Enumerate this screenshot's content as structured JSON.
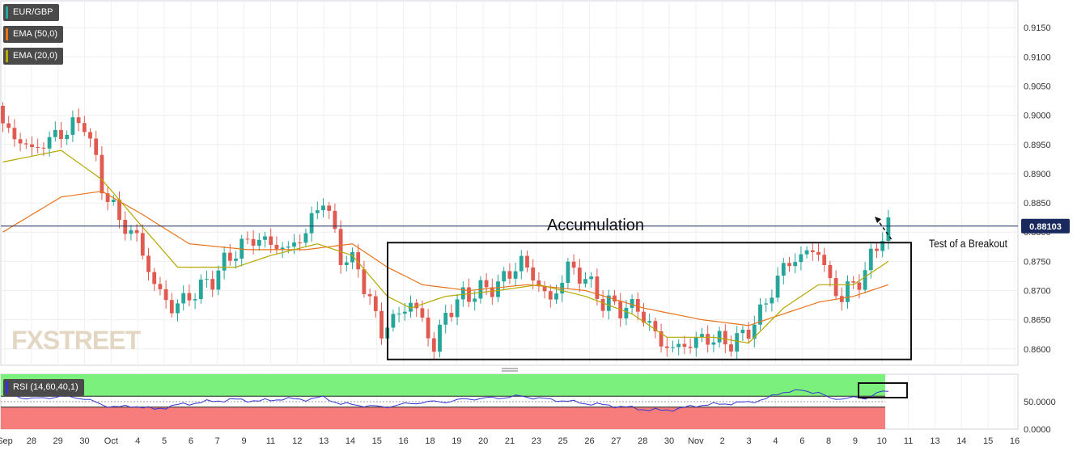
{
  "legend": [
    {
      "label": "EUR/GBP",
      "color": "#26a69a"
    },
    {
      "label": "EMA (50,0)",
      "color": "#e8731a"
    },
    {
      "label": "EMA (20,0)",
      "color": "#b5a800"
    }
  ],
  "rsi_label": "RSI (14,60,40,1)",
  "watermark": "FXSTREET",
  "current_price_label": "0.88103",
  "annotations": {
    "accumulation": "Accumulation",
    "test_breakout": "Test of a Breakout"
  },
  "colors": {
    "up_candle": "#26a69a",
    "down_candle": "#e05a4f",
    "ema50": "#e8731a",
    "ema20": "#b5a800",
    "rsi_line": "#3535d0",
    "rsi_overbought": "#7cf07c",
    "rsi_oversold": "#f77d7d",
    "price_line": "#1a2a5e"
  },
  "chart_data": {
    "type": "candlestick",
    "symbol": "EUR/GBP",
    "x_labels": [
      "Sep",
      "28",
      "29",
      "30",
      "Oct",
      "4",
      "5",
      "6",
      "7",
      "9",
      "11",
      "12",
      "13",
      "14",
      "15",
      "16",
      "18",
      "19",
      "20",
      "21",
      "23",
      "25",
      "26",
      "27",
      "28",
      "30",
      "Nov",
      "2",
      "3",
      "4",
      "6",
      "8",
      "9",
      "10",
      "11",
      "13",
      "14",
      "15",
      "16"
    ],
    "y_ticks": [
      0.86,
      0.865,
      0.87,
      0.875,
      0.88,
      0.885,
      0.89,
      0.895,
      0.9,
      0.905,
      0.91,
      0.915
    ],
    "y_tick_labels": [
      "0.8600",
      "0.8650",
      "0.8700",
      "0.8750",
      "0.8800",
      "0.8850",
      "0.8900",
      "0.8950",
      "0.9000",
      "0.9050",
      "0.9100",
      "0.9150"
    ],
    "ylim": [
      0.8572,
      0.9196
    ],
    "current_price": 0.88103,
    "price_anchors": [
      [
        0,
        0.898
      ],
      [
        5,
        0.894
      ],
      [
        10,
        0.897
      ],
      [
        14,
        0.899
      ],
      [
        17,
        0.888
      ],
      [
        20,
        0.882
      ],
      [
        23,
        0.879
      ],
      [
        26,
        0.871
      ],
      [
        29,
        0.867
      ],
      [
        32,
        0.869
      ],
      [
        36,
        0.872
      ],
      [
        39,
        0.876
      ],
      [
        43,
        0.879
      ],
      [
        46,
        0.878
      ],
      [
        49,
        0.877
      ],
      [
        52,
        0.88
      ],
      [
        55,
        0.886
      ],
      [
        58,
        0.876
      ],
      [
        61,
        0.874
      ],
      [
        63,
        0.868
      ],
      [
        65,
        0.863
      ],
      [
        68,
        0.866
      ],
      [
        70,
        0.868
      ],
      [
        72,
        0.865
      ],
      [
        74,
        0.86
      ],
      [
        76,
        0.866
      ],
      [
        79,
        0.869
      ],
      [
        82,
        0.87
      ],
      [
        85,
        0.871
      ],
      [
        89,
        0.875
      ],
      [
        92,
        0.871
      ],
      [
        94,
        0.868
      ],
      [
        97,
        0.874
      ],
      [
        100,
        0.872
      ],
      [
        103,
        0.868
      ],
      [
        106,
        0.867
      ],
      [
        109,
        0.867
      ],
      [
        111,
        0.864
      ],
      [
        113,
        0.861
      ],
      [
        115,
        0.86
      ],
      [
        118,
        0.861
      ],
      [
        121,
        0.862
      ],
      [
        124,
        0.861
      ],
      [
        127,
        0.862
      ],
      [
        130,
        0.866
      ],
      [
        132,
        0.87
      ],
      [
        134,
        0.874
      ],
      [
        137,
        0.876
      ],
      [
        140,
        0.877
      ],
      [
        142,
        0.871
      ],
      [
        144,
        0.869
      ],
      [
        146,
        0.871
      ],
      [
        148,
        0.873
      ],
      [
        150,
        0.878
      ],
      [
        152,
        0.881
      ]
    ],
    "ema20_anchors": [
      [
        0,
        0.892
      ],
      [
        10,
        0.894
      ],
      [
        17,
        0.889
      ],
      [
        23,
        0.882
      ],
      [
        30,
        0.874
      ],
      [
        40,
        0.874
      ],
      [
        46,
        0.876
      ],
      [
        54,
        0.878
      ],
      [
        60,
        0.876
      ],
      [
        66,
        0.869
      ],
      [
        70,
        0.867
      ],
      [
        76,
        0.869
      ],
      [
        85,
        0.87
      ],
      [
        92,
        0.871
      ],
      [
        100,
        0.869
      ],
      [
        108,
        0.866
      ],
      [
        114,
        0.862
      ],
      [
        122,
        0.862
      ],
      [
        128,
        0.861
      ],
      [
        134,
        0.867
      ],
      [
        140,
        0.871
      ],
      [
        146,
        0.871
      ],
      [
        152,
        0.875
      ]
    ],
    "ema50_anchors": [
      [
        0,
        0.88
      ],
      [
        10,
        0.886
      ],
      [
        17,
        0.887
      ],
      [
        24,
        0.883
      ],
      [
        32,
        0.878
      ],
      [
        42,
        0.877
      ],
      [
        52,
        0.877
      ],
      [
        60,
        0.878
      ],
      [
        66,
        0.874
      ],
      [
        72,
        0.871
      ],
      [
        80,
        0.87
      ],
      [
        90,
        0.871
      ],
      [
        100,
        0.87
      ],
      [
        110,
        0.867
      ],
      [
        120,
        0.865
      ],
      [
        128,
        0.864
      ],
      [
        134,
        0.866
      ],
      [
        140,
        0.868
      ],
      [
        146,
        0.869
      ],
      [
        152,
        0.871
      ]
    ],
    "n_candles": 153,
    "rsi": {
      "label": "RSI (14,60,40,1)",
      "levels": [
        60,
        40
      ],
      "y_ticks": [
        50,
        0
      ],
      "y_tick_labels": [
        "50.0000",
        "0.0000"
      ],
      "anchors": [
        [
          0,
          68
        ],
        [
          3,
          58
        ],
        [
          6,
          55
        ],
        [
          10,
          60
        ],
        [
          14,
          56
        ],
        [
          17,
          44
        ],
        [
          20,
          40
        ],
        [
          23,
          42
        ],
        [
          26,
          36
        ],
        [
          30,
          44
        ],
        [
          35,
          50
        ],
        [
          40,
          54
        ],
        [
          44,
          51
        ],
        [
          48,
          55
        ],
        [
          52,
          54
        ],
        [
          55,
          58
        ],
        [
          58,
          46
        ],
        [
          62,
          43
        ],
        [
          65,
          40
        ],
        [
          68,
          44
        ],
        [
          72,
          49
        ],
        [
          76,
          50
        ],
        [
          80,
          55
        ],
        [
          85,
          57
        ],
        [
          89,
          60
        ],
        [
          92,
          56
        ],
        [
          96,
          52
        ],
        [
          100,
          47
        ],
        [
          104,
          43
        ],
        [
          107,
          40
        ],
        [
          110,
          36
        ],
        [
          113,
          34
        ],
        [
          116,
          37
        ],
        [
          119,
          43
        ],
        [
          122,
          45
        ],
        [
          125,
          47
        ],
        [
          128,
          49
        ],
        [
          131,
          55
        ],
        [
          134,
          68
        ],
        [
          137,
          70
        ],
        [
          140,
          67
        ],
        [
          142,
          55
        ],
        [
          145,
          57
        ],
        [
          148,
          56
        ],
        [
          150,
          66
        ],
        [
          152,
          68
        ]
      ]
    }
  }
}
